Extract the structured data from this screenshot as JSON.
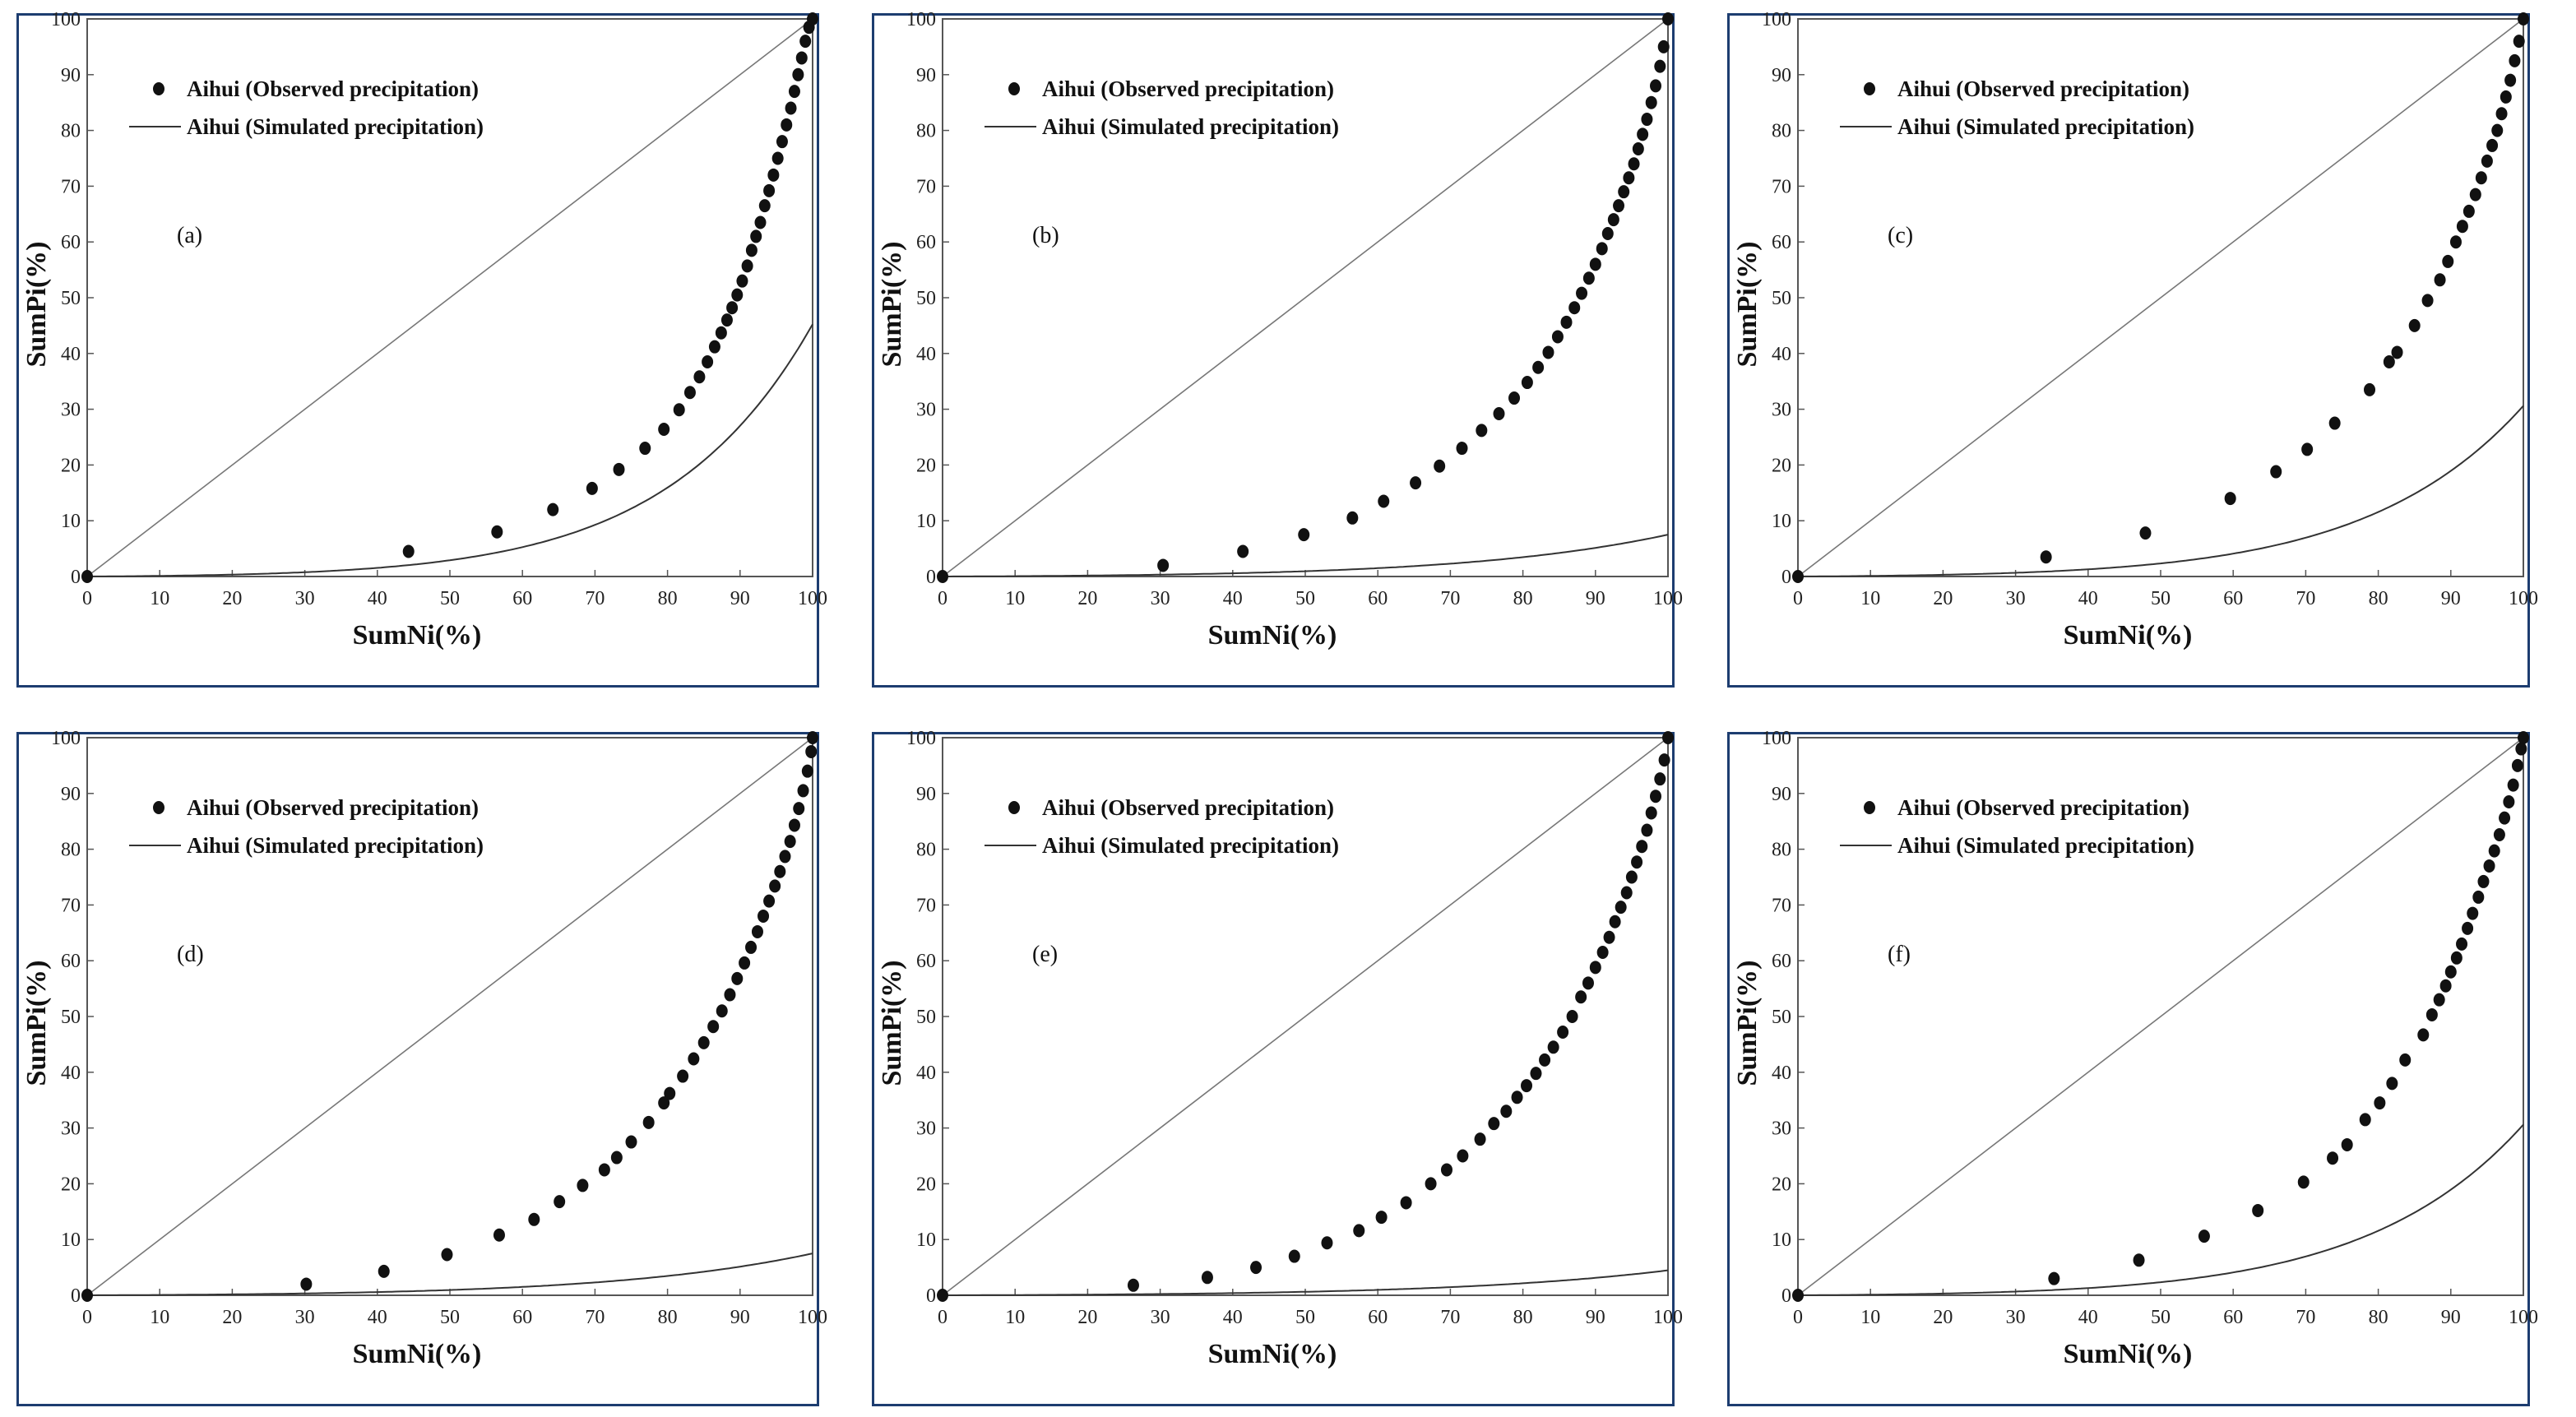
{
  "chart_data": [
    {
      "type": "scatter",
      "panel_label": "(a)",
      "xlabel": "SumNi(%)",
      "ylabel": "SumPi(%)",
      "xlim": [
        0,
        100
      ],
      "ylim": [
        0,
        100
      ],
      "xticks": [
        0,
        10,
        20,
        30,
        40,
        50,
        60,
        70,
        80,
        90,
        100
      ],
      "yticks": [
        0,
        10,
        20,
        30,
        40,
        50,
        60,
        70,
        80,
        90,
        100
      ],
      "legend": [
        "Aihui (Observed precipitation)",
        "Aihui (Simulated precipitation)"
      ],
      "curve_params": {
        "a": 0.0075,
        "b": 0.041
      },
      "observed": [
        [
          0,
          0
        ],
        [
          44.3,
          4.5
        ],
        [
          56.5,
          8
        ],
        [
          64.2,
          12
        ],
        [
          69.6,
          15.8
        ],
        [
          73.3,
          19.2
        ],
        [
          76.9,
          23
        ],
        [
          79.5,
          26.4
        ],
        [
          81.6,
          29.9
        ],
        [
          83.1,
          33
        ],
        [
          84.4,
          35.8
        ],
        [
          85.5,
          38.5
        ],
        [
          86.5,
          41.2
        ],
        [
          87.4,
          43.7
        ],
        [
          88.2,
          46
        ],
        [
          88.9,
          48.2
        ],
        [
          89.6,
          50.5
        ],
        [
          90.3,
          53
        ],
        [
          91,
          55.7
        ],
        [
          91.6,
          58.5
        ],
        [
          92.2,
          61
        ],
        [
          92.8,
          63.5
        ],
        [
          93.4,
          66.5
        ],
        [
          94,
          69.2
        ],
        [
          94.6,
          72
        ],
        [
          95.2,
          75
        ],
        [
          95.8,
          78
        ],
        [
          96.4,
          81
        ],
        [
          97,
          84
        ],
        [
          97.5,
          87
        ],
        [
          98,
          90
        ],
        [
          98.5,
          93
        ],
        [
          99,
          96
        ],
        [
          99.5,
          98.5
        ],
        [
          100,
          100
        ]
      ]
    },
    {
      "type": "scatter",
      "panel_label": "(b)",
      "xlabel": "SumNi(%)",
      "ylabel": "SumPi(%)",
      "xlim": [
        0,
        100
      ],
      "ylim": [
        0,
        100
      ],
      "xticks": [
        0,
        10,
        20,
        30,
        40,
        50,
        60,
        70,
        80,
        90,
        100
      ],
      "yticks": [
        0,
        10,
        20,
        30,
        40,
        50,
        60,
        70,
        80,
        90,
        100
      ],
      "legend": [
        "Aihui (Observed precipitation)",
        "Aihui (Simulated precipitation)"
      ],
      "curve_params": {
        "a": 0.0048,
        "b": 0.0275
      },
      "observed": [
        [
          0,
          0
        ],
        [
          30.4,
          2
        ],
        [
          41.4,
          4.5
        ],
        [
          49.8,
          7.5
        ],
        [
          56.5,
          10.5
        ],
        [
          60.8,
          13.5
        ],
        [
          65.2,
          16.8
        ],
        [
          68.5,
          19.8
        ],
        [
          71.6,
          23
        ],
        [
          74.3,
          26.2
        ],
        [
          76.7,
          29.2
        ],
        [
          78.8,
          32
        ],
        [
          80.6,
          34.8
        ],
        [
          82.1,
          37.5
        ],
        [
          83.5,
          40.2
        ],
        [
          84.8,
          43
        ],
        [
          86,
          45.6
        ],
        [
          87.1,
          48.2
        ],
        [
          88.1,
          50.8
        ],
        [
          89.1,
          53.5
        ],
        [
          90,
          56
        ],
        [
          90.9,
          58.8
        ],
        [
          91.7,
          61.5
        ],
        [
          92.5,
          64
        ],
        [
          93.2,
          66.5
        ],
        [
          93.9,
          69
        ],
        [
          94.6,
          71.5
        ],
        [
          95.3,
          74
        ],
        [
          95.9,
          76.7
        ],
        [
          96.5,
          79.3
        ],
        [
          97.1,
          82
        ],
        [
          97.7,
          85
        ],
        [
          98.3,
          88
        ],
        [
          98.9,
          91.5
        ],
        [
          99.4,
          95
        ],
        [
          100,
          100
        ]
      ]
    },
    {
      "type": "scatter",
      "panel_label": "(c)",
      "xlabel": "SumNi(%)",
      "ylabel": "SumPi(%)",
      "xlim": [
        0,
        100
      ],
      "ylim": [
        0,
        100
      ],
      "xticks": [
        0,
        10,
        20,
        30,
        40,
        50,
        60,
        70,
        80,
        90,
        100
      ],
      "yticks": [
        0,
        10,
        20,
        30,
        40,
        50,
        60,
        70,
        80,
        90,
        100
      ],
      "legend": [
        "Aihui (Observed precipitation)",
        "Aihui (Simulated precipitation)"
      ],
      "curve_params": {
        "a": 0.0072,
        "b": 0.0375
      },
      "observed": [
        [
          0,
          0
        ],
        [
          34.2,
          3.5
        ],
        [
          47.9,
          7.8
        ],
        [
          59.6,
          14
        ],
        [
          65.9,
          18.8
        ],
        [
          70.2,
          22.8
        ],
        [
          74,
          27.5
        ],
        [
          78.8,
          33.5
        ],
        [
          81.5,
          38.5
        ],
        [
          82.6,
          40.2
        ],
        [
          85,
          45
        ],
        [
          86.8,
          49.5
        ],
        [
          88.5,
          53.2
        ],
        [
          89.6,
          56.5
        ],
        [
          90.7,
          60
        ],
        [
          91.6,
          62.8
        ],
        [
          92.5,
          65.5
        ],
        [
          93.4,
          68.5
        ],
        [
          94.2,
          71.5
        ],
        [
          95,
          74.5
        ],
        [
          95.7,
          77.3
        ],
        [
          96.4,
          80
        ],
        [
          97,
          83
        ],
        [
          97.6,
          86
        ],
        [
          98.2,
          89
        ],
        [
          98.8,
          92.5
        ],
        [
          99.4,
          96
        ],
        [
          100,
          100
        ]
      ]
    },
    {
      "type": "scatter",
      "panel_label": "(d)",
      "xlabel": "SumNi(%)",
      "ylabel": "SumPi(%)",
      "xlim": [
        0,
        100
      ],
      "ylim": [
        0,
        100
      ],
      "xticks": [
        0,
        10,
        20,
        30,
        40,
        50,
        60,
        70,
        80,
        90,
        100
      ],
      "yticks": [
        0,
        10,
        20,
        30,
        40,
        50,
        60,
        70,
        80,
        90,
        100
      ],
      "legend": [
        "Aihui (Observed precipitation)",
        "Aihui (Simulated precipitation)"
      ],
      "curve_params": {
        "a": 0.0048,
        "b": 0.0275
      },
      "observed": [
        [
          0,
          0
        ],
        [
          30.2,
          2
        ],
        [
          40.9,
          4.3
        ],
        [
          49.6,
          7.3
        ],
        [
          56.8,
          10.8
        ],
        [
          61.6,
          13.6
        ],
        [
          65.1,
          16.8
        ],
        [
          68.3,
          19.7
        ],
        [
          71.3,
          22.5
        ],
        [
          73,
          24.7
        ],
        [
          75,
          27.5
        ],
        [
          77.4,
          31
        ],
        [
          79.5,
          34.5
        ],
        [
          80.3,
          36.2
        ],
        [
          82.1,
          39.3
        ],
        [
          83.6,
          42.4
        ],
        [
          85,
          45.3
        ],
        [
          86.3,
          48.2
        ],
        [
          87.5,
          51
        ],
        [
          88.6,
          53.9
        ],
        [
          89.6,
          56.8
        ],
        [
          90.6,
          59.6
        ],
        [
          91.5,
          62.4
        ],
        [
          92.4,
          65.2
        ],
        [
          93.2,
          68
        ],
        [
          94,
          70.7
        ],
        [
          94.8,
          73.4
        ],
        [
          95.5,
          76
        ],
        [
          96.2,
          78.7
        ],
        [
          96.9,
          81.4
        ],
        [
          97.5,
          84.3
        ],
        [
          98.1,
          87.3
        ],
        [
          98.7,
          90.5
        ],
        [
          99.3,
          94
        ],
        [
          99.8,
          97.5
        ],
        [
          100,
          100
        ]
      ]
    },
    {
      "type": "scatter",
      "panel_label": "(e)",
      "xlabel": "SumNi(%)",
      "ylabel": "SumPi(%)",
      "xlim": [
        0,
        100
      ],
      "ylim": [
        0,
        100
      ],
      "xticks": [
        0,
        10,
        20,
        30,
        40,
        50,
        60,
        70,
        80,
        90,
        100
      ],
      "yticks": [
        0,
        10,
        20,
        30,
        40,
        50,
        60,
        70,
        80,
        90,
        100
      ],
      "legend": [
        "Aihui (Observed precipitation)",
        "Aihui (Simulated precipitation)"
      ],
      "curve_params": {
        "a": 0.0035,
        "b": 0.0255
      },
      "observed": [
        [
          0,
          0
        ],
        [
          26.3,
          1.8
        ],
        [
          36.5,
          3.2
        ],
        [
          43.2,
          5
        ],
        [
          48.5,
          7
        ],
        [
          53,
          9.4
        ],
        [
          57.4,
          11.6
        ],
        [
          60.5,
          14
        ],
        [
          63.9,
          16.6
        ],
        [
          67.3,
          20
        ],
        [
          69.5,
          22.5
        ],
        [
          71.7,
          25
        ],
        [
          74.1,
          28
        ],
        [
          76,
          30.8
        ],
        [
          77.7,
          33
        ],
        [
          79.2,
          35.5
        ],
        [
          80.5,
          37.6
        ],
        [
          81.8,
          39.8
        ],
        [
          83,
          42.2
        ],
        [
          84.2,
          44.5
        ],
        [
          85.5,
          47.2
        ],
        [
          86.8,
          50
        ],
        [
          88,
          53.5
        ],
        [
          89,
          56
        ],
        [
          90,
          58.8
        ],
        [
          91,
          61.5
        ],
        [
          91.9,
          64.2
        ],
        [
          92.7,
          67
        ],
        [
          93.5,
          69.6
        ],
        [
          94.3,
          72.2
        ],
        [
          95,
          75
        ],
        [
          95.7,
          77.7
        ],
        [
          96.4,
          80.5
        ],
        [
          97.1,
          83.4
        ],
        [
          97.7,
          86.5
        ],
        [
          98.3,
          89.5
        ],
        [
          98.9,
          92.6
        ],
        [
          99.5,
          96
        ],
        [
          100,
          100
        ]
      ]
    },
    {
      "type": "scatter",
      "panel_label": "(f)",
      "xlabel": "SumNi(%)",
      "ylabel": "SumPi(%)",
      "xlim": [
        0,
        100
      ],
      "ylim": [
        0,
        100
      ],
      "xticks": [
        0,
        10,
        20,
        30,
        40,
        50,
        60,
        70,
        80,
        90,
        100
      ],
      "yticks": [
        0,
        10,
        20,
        30,
        40,
        50,
        60,
        70,
        80,
        90,
        100
      ],
      "legend": [
        "Aihui (Observed precipitation)",
        "Aihui (Simulated precipitation)"
      ],
      "curve_params": {
        "a": 0.0072,
        "b": 0.0375
      },
      "observed": [
        [
          0,
          0
        ],
        [
          35.3,
          3
        ],
        [
          47,
          6.3
        ],
        [
          56,
          10.6
        ],
        [
          63.4,
          15.2
        ],
        [
          69.7,
          20.3
        ],
        [
          73.7,
          24.6
        ],
        [
          75.7,
          27
        ],
        [
          78.2,
          31.5
        ],
        [
          80.2,
          34.5
        ],
        [
          81.9,
          38
        ],
        [
          83.7,
          42.2
        ],
        [
          86.2,
          46.7
        ],
        [
          87.4,
          50.3
        ],
        [
          88.4,
          53
        ],
        [
          89.3,
          55.5
        ],
        [
          90,
          58
        ],
        [
          90.8,
          60.5
        ],
        [
          91.5,
          63
        ],
        [
          92.3,
          65.8
        ],
        [
          93,
          68.5
        ],
        [
          93.8,
          71.4
        ],
        [
          94.5,
          74.2
        ],
        [
          95.3,
          77
        ],
        [
          96,
          79.7
        ],
        [
          96.7,
          82.6
        ],
        [
          97.4,
          85.6
        ],
        [
          98,
          88.5
        ],
        [
          98.6,
          91.5
        ],
        [
          99.2,
          95
        ],
        [
          99.7,
          98
        ],
        [
          100,
          100
        ]
      ]
    }
  ]
}
